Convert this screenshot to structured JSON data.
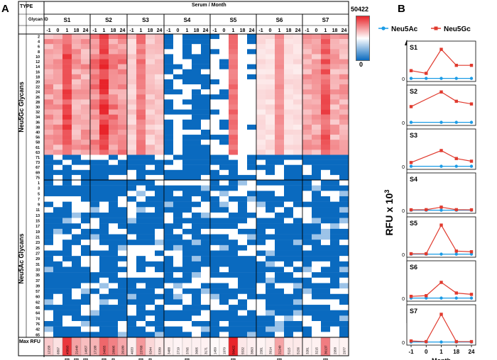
{
  "panels": {
    "a": "A",
    "b": "B"
  },
  "header": {
    "type_label": "TYPE",
    "glycan_id_label": "Glycan ID",
    "serum_month_label": "Serum / Month",
    "max_rfu_label": "Max RFU"
  },
  "legend_scale": {
    "max": "50422",
    "min": "0"
  },
  "colors": {
    "high": "#e8242a",
    "mid": "#ffffff",
    "low": "#0a6abf",
    "neu5ac": "#1a9be6",
    "neu5gc": "#e03a2e"
  },
  "chart_data": [
    {
      "type": "heatmap",
      "title": "",
      "sera": [
        "S1",
        "S2",
        "S3",
        "S4",
        "S5",
        "S6",
        "S7"
      ],
      "months": [
        "-1",
        "0",
        "1",
        "18",
        "24"
      ],
      "neu5gc_group_label": "Neu5Gc Glycans",
      "neu5ac_group_label": "Neu5Ac Glycans",
      "neu5gc_ids": [
        "2",
        "4",
        "6",
        "8",
        "10",
        "12",
        "14",
        "16",
        "18",
        "20",
        "22",
        "24",
        "26",
        "28",
        "30",
        "32",
        "34",
        "36",
        "38",
        "40",
        "56",
        "58",
        "61",
        "63",
        "71",
        "73",
        "67",
        "69",
        "75"
      ],
      "neu5ac_ids": [
        "1",
        "3",
        "5",
        "7",
        "9",
        "11",
        "13",
        "15",
        "17",
        "19",
        "21",
        "23",
        "25",
        "27",
        "29",
        "31",
        "33",
        "35",
        "37",
        "39",
        "57",
        "60",
        "62",
        "66",
        "64",
        "74",
        "76",
        "42",
        "65"
      ],
      "max_rfu": [
        [
          "12158",
          "6897",
          "45893",
          "21440",
          "14957"
        ],
        [
          "17188",
          "34955",
          "28905",
          "20180"
        ],
        [
          "4033",
          "23768",
          "9244",
          "5330"
        ],
        [
          "3488",
          "2719",
          "3795",
          "3605",
          "3171"
        ],
        [
          "1450",
          "1979",
          "50422",
          "5532",
          "3893"
        ],
        [
          "2581",
          "3914",
          "21240",
          "5115",
          "5156"
        ],
        [
          "3281",
          "3215",
          "30137",
          "2958",
          "2977"
        ]
      ],
      "significance": [
        [
          "",
          "",
          "***",
          "***",
          "***"
        ],
        [
          "",
          "***",
          "**",
          ""
        ],
        [
          "",
          "***",
          "**",
          ""
        ],
        [
          "",
          "",
          "***",
          "",
          ""
        ],
        [
          "",
          "",
          "***",
          "",
          ""
        ],
        [
          "",
          "",
          "***",
          "",
          ""
        ],
        [
          "",
          "",
          "***",
          "",
          ""
        ]
      ]
    },
    {
      "type": "line",
      "legend": [
        "Neu5Ac",
        "Neu5Gc"
      ],
      "y_label": "RFU x 10",
      "y_label_sup": "3",
      "x_label": "Month",
      "x_tick_labels": [
        "-1",
        "0",
        "1",
        "18",
        "24"
      ],
      "y_tick_label": "0",
      "panels": [
        {
          "name": "S1",
          "neu5ac": [
            0.2,
            0.2,
            0.2,
            0.2,
            0.2
          ],
          "neu5gc": [
            6,
            4,
            22,
            10,
            10
          ]
        },
        {
          "name": "S2",
          "neu5ac": [
            0.2,
            0.2,
            0.2,
            0.2
          ],
          "neu5gc": [
            12,
            23,
            16,
            14
          ]
        },
        {
          "name": "S3",
          "neu5ac": [
            0.2,
            0.2,
            0.2,
            0.2
          ],
          "neu5gc": [
            3,
            12,
            6,
            4
          ]
        },
        {
          "name": "S4",
          "neu5ac": [
            0.2,
            0.2,
            0.2,
            0.2,
            0.2
          ],
          "neu5gc": [
            0.5,
            0.6,
            2.5,
            0.6,
            0.5
          ]
        },
        {
          "name": "S5",
          "neu5ac": [
            0.2,
            0.2,
            0.2,
            0.2,
            0.2
          ],
          "neu5gc": [
            0.5,
            0.5,
            22,
            2.5,
            2
          ]
        },
        {
          "name": "S6",
          "neu5ac": [
            0.2,
            0.2,
            0.2,
            0.2,
            0.2
          ],
          "neu5gc": [
            1.5,
            2,
            12,
            4,
            3
          ]
        },
        {
          "name": "S7",
          "neu5ac": [
            0.2,
            0.2,
            0.2,
            0.2,
            0.2
          ],
          "neu5gc": [
            1,
            0.5,
            21,
            0.5,
            0.5
          ]
        }
      ]
    }
  ]
}
